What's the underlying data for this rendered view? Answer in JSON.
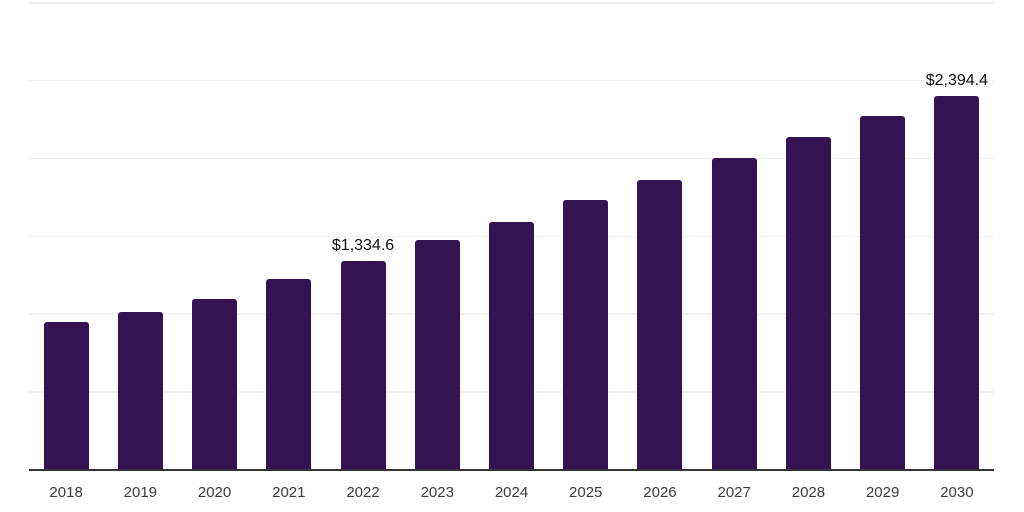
{
  "chart_data": {
    "type": "bar",
    "title": "",
    "xlabel": "",
    "ylabel": "",
    "categories": [
      "2018",
      "2019",
      "2020",
      "2021",
      "2022",
      "2023",
      "2024",
      "2025",
      "2026",
      "2027",
      "2028",
      "2029",
      "2030"
    ],
    "values": [
      945,
      1010,
      1094,
      1219,
      1334.6,
      1471,
      1589,
      1728,
      1857,
      2000,
      2135,
      2268,
      2394.4
    ],
    "data_labels": {
      "2022": "$1,334.6",
      "2030": "$2,394.4"
    },
    "ylim": [
      0,
      3000
    ],
    "gridline_step": 500,
    "grid": "horizontal-only",
    "legend_position": "none",
    "y_axis_tick_labels_visible": false,
    "colors": {
      "bar": "#351352",
      "gridline": "#f0f0f2",
      "axis_line": "#333333",
      "tick_label": "#3d3d3d",
      "value_label": "#111111",
      "background": "#ffffff"
    }
  }
}
